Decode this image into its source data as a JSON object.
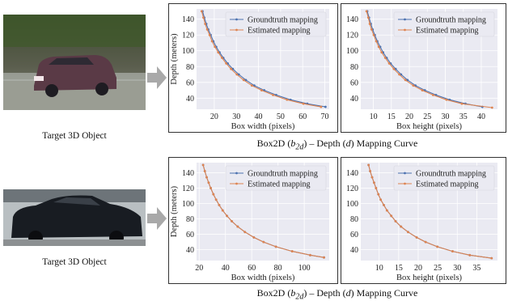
{
  "rows": [
    {
      "object_label": "Target 3D Object",
      "caption": {
        "prefix": "Box2D (",
        "b": "b",
        "sub": "2d",
        "mid": ") – Depth (",
        "d": "d",
        "suffix": ") Mapping Curve"
      },
      "charts": [
        {
          "type": "line",
          "xlabel": "Box width (pixels)",
          "ylabel": "Depth (meters)",
          "xlim": [
            12,
            72
          ],
          "ylim": [
            26,
            153
          ],
          "xticks": [
            20,
            30,
            40,
            50,
            60,
            70
          ],
          "yticks": [
            40,
            60,
            80,
            100,
            120,
            140
          ],
          "grid": true,
          "legend": "top-right",
          "series": [
            {
              "name": "Groundtruth mapping",
              "color": "#4c72b0",
              "x": [
                14.7,
                15.5,
                16.4,
                17.3,
                18.4,
                19.6,
                20.9,
                22.4,
                24.1,
                26.1,
                28.4,
                31.1,
                34.3,
                38.1,
                42.6,
                48.0,
                54.5,
                62.1,
                70.3
              ],
              "y": [
                150,
                142,
                134,
                127,
                120,
                112,
                105,
                98,
                91,
                84,
                77,
                70,
                63,
                56,
                50,
                44,
                38,
                33,
                29
              ]
            },
            {
              "name": "Estimated mapping",
              "color": "#dd8452",
              "x": [
                14.3,
                15.1,
                15.9,
                16.8,
                17.9,
                19.0,
                20.3,
                21.8,
                23.5,
                25.4,
                27.6,
                30.2,
                33.3,
                37.0,
                41.4,
                46.6,
                52.9,
                60.3,
                68.3
              ],
              "y": [
                150,
                142,
                134,
                127,
                120,
                112,
                105,
                98,
                91,
                84,
                77,
                70,
                63,
                56,
                50,
                44,
                38,
                33,
                29
              ]
            }
          ]
        },
        {
          "type": "line",
          "xlabel": "Box height (pixels)",
          "ylabel": "",
          "xlim": [
            6.5,
            44.5
          ],
          "ylim": [
            26,
            153
          ],
          "xticks": [
            10,
            15,
            20,
            25,
            30,
            35,
            40
          ],
          "yticks": [
            40,
            60,
            80,
            100,
            120,
            140
          ],
          "grid": true,
          "legend": "top-right",
          "series": [
            {
              "name": "Groundtruth mapping",
              "color": "#4c72b0",
              "x": [
                8.3,
                8.8,
                9.3,
                9.8,
                10.4,
                11.1,
                11.9,
                12.7,
                13.7,
                14.8,
                16.2,
                17.7,
                19.5,
                21.7,
                24.3,
                27.4,
                31.2,
                35.6,
                40.3
              ],
              "y": [
                150,
                142,
                134,
                127,
                120,
                112,
                105,
                98,
                91,
                84,
                77,
                70,
                63,
                56,
                50,
                44,
                38,
                33,
                29
              ]
            },
            {
              "name": "Estimated mapping",
              "color": "#dd8452",
              "x": [
                8.1,
                8.6,
                9.0,
                9.5,
                10.1,
                10.8,
                11.5,
                12.3,
                13.3,
                14.4,
                15.7,
                17.2,
                18.9,
                21.1,
                23.6,
                26.6,
                30.3,
                34.6,
                43.0
              ],
              "y": [
                150,
                142,
                134,
                127,
                120,
                112,
                105,
                98,
                91,
                84,
                77,
                70,
                63,
                56,
                50,
                44,
                38,
                33,
                28
              ]
            }
          ]
        }
      ]
    },
    {
      "object_label": "Target 3D Object",
      "caption": {
        "prefix": "Box2D (",
        "b": "b",
        "sub": "2d",
        "mid": ") – Depth (",
        "d": "d",
        "suffix": ") Mapping Curve"
      },
      "charts": [
        {
          "type": "line",
          "xlabel": "Box width (pixels)",
          "ylabel": "Depth (meters)",
          "xlim": [
            18,
            119
          ],
          "ylim": [
            26,
            153
          ],
          "xticks": [
            20,
            40,
            60,
            80,
            100
          ],
          "yticks": [
            40,
            60,
            80,
            100,
            120,
            140
          ],
          "grid": true,
          "legend": "top-right",
          "series": [
            {
              "name": "Groundtruth mapping",
              "color": "#4c72b0",
              "x": [
                23.0,
                24.3,
                25.7,
                27.2,
                28.8,
                30.8,
                32.9,
                35.2,
                37.9,
                41.1,
                44.8,
                49.3,
                54.8,
                61.6,
                69.0,
                78.4,
                90.8,
                104.5,
                115.0
              ],
              "y": [
                150,
                142,
                134,
                127,
                120,
                112,
                105,
                98,
                91,
                84,
                77,
                70,
                63,
                56,
                50,
                44,
                38,
                33,
                30
              ]
            },
            {
              "name": "Estimated mapping",
              "color": "#dd8452",
              "x": [
                23.0,
                24.3,
                25.7,
                27.2,
                28.8,
                30.8,
                32.9,
                35.2,
                37.9,
                41.1,
                44.8,
                49.3,
                54.8,
                61.6,
                69.0,
                78.4,
                90.8,
                104.5,
                115.0
              ],
              "y": [
                150,
                142,
                134,
                127,
                120,
                112,
                105,
                98,
                91,
                84,
                77,
                70,
                63,
                56,
                50,
                44,
                38,
                33,
                30
              ]
            }
          ]
        },
        {
          "type": "line",
          "xlabel": "Box height (pixels)",
          "ylabel": "",
          "xlim": [
            5.3,
            40.3
          ],
          "ylim": [
            26,
            153
          ],
          "xticks": [
            10,
            15,
            20,
            25,
            30,
            35
          ],
          "yticks": [
            40,
            60,
            80,
            100,
            120,
            140
          ],
          "grid": true,
          "legend": "top-right",
          "series": [
            {
              "name": "Groundtruth mapping",
              "color": "#4c72b0",
              "x": [
                7.3,
                7.7,
                8.2,
                8.7,
                9.2,
                9.8,
                10.4,
                11.2,
                12.0,
                13.1,
                14.2,
                15.6,
                17.4,
                19.6,
                21.9,
                24.9,
                28.8,
                33.2,
                38.8
              ],
              "y": [
                150,
                142,
                134,
                127,
                120,
                112,
                105,
                98,
                91,
                84,
                77,
                70,
                63,
                56,
                50,
                44,
                38,
                33,
                29
              ]
            },
            {
              "name": "Estimated mapping",
              "color": "#dd8452",
              "x": [
                7.3,
                7.7,
                8.2,
                8.7,
                9.2,
                9.8,
                10.4,
                11.2,
                12.0,
                13.1,
                14.2,
                15.6,
                17.4,
                19.6,
                21.9,
                24.9,
                28.8,
                33.2,
                38.8
              ],
              "y": [
                150,
                142,
                134,
                127,
                120,
                112,
                105,
                98,
                91,
                84,
                77,
                70,
                63,
                56,
                50,
                44,
                38,
                33,
                29
              ]
            }
          ]
        }
      ]
    }
  ]
}
